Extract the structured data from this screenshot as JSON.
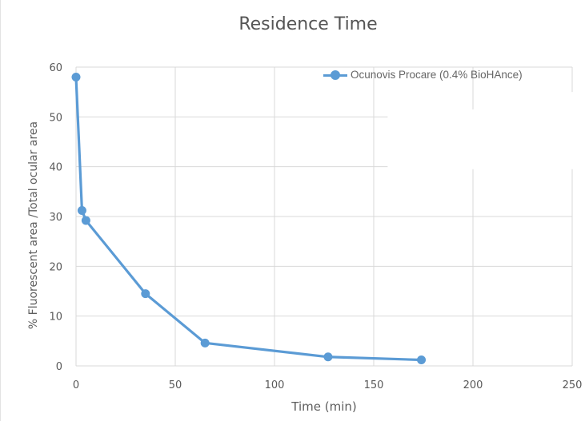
{
  "chart_data": {
    "type": "line",
    "title": "Residence Time",
    "xlabel": "Time (min)",
    "ylabel": "% Fluorescent area /Total ocular area",
    "xlim": [
      0,
      250
    ],
    "ylim": [
      0,
      60
    ],
    "x_ticks": [
      "0",
      "50",
      "100",
      "150",
      "200",
      "250"
    ],
    "y_ticks": [
      "0",
      "10",
      "20",
      "30",
      "40",
      "50",
      "60"
    ],
    "grid": true,
    "legend_position": "top-right",
    "series": [
      {
        "name": "Ocunovis Procare (0.4% BioHAnce)",
        "color": "#5b9bd5",
        "points": [
          {
            "x": 0,
            "y": 58
          },
          {
            "x": 3,
            "y": 31.2
          },
          {
            "x": 5,
            "y": 29.2
          },
          {
            "x": 35,
            "y": 14.5
          },
          {
            "x": 65,
            "y": 4.6
          },
          {
            "x": 127,
            "y": 1.8
          },
          {
            "x": 174,
            "y": 1.2
          }
        ]
      }
    ]
  }
}
